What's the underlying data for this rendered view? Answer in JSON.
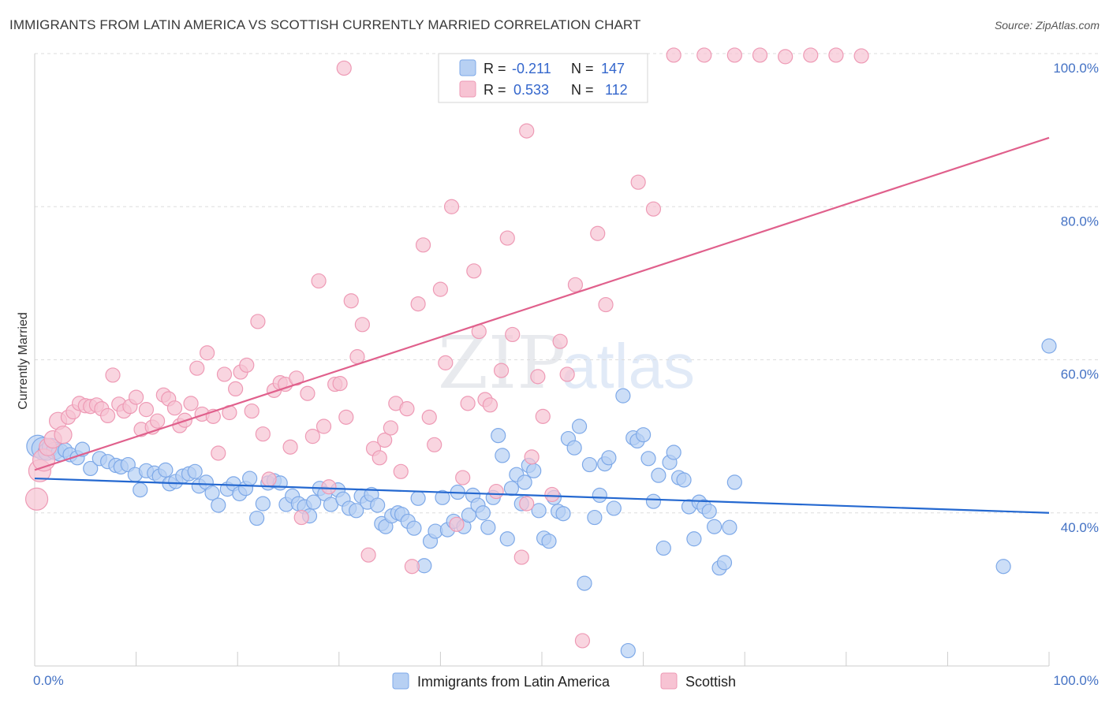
{
  "header": {
    "title": "IMMIGRANTS FROM LATIN AMERICA VS SCOTTISH CURRENTLY MARRIED CORRELATION CHART",
    "source": "Source: ZipAtlas.com"
  },
  "watermark": {
    "zip": "ZIP",
    "atlas": "atlas"
  },
  "legend": {
    "r_label": "R =",
    "n_label": "N =",
    "series": [
      {
        "r": "-0.211",
        "n": "147"
      },
      {
        "r": "0.533",
        "n": "112"
      }
    ]
  },
  "bottom_legend": [
    "Immigrants from Latin America",
    "Scottish"
  ],
  "colors": {
    "blue_fill": "#b7d0f3",
    "blue_stroke": "#7ea9e8",
    "blue_line": "#2468d0",
    "pink_fill": "#f7c3d3",
    "pink_stroke": "#ee9ab5",
    "pink_line": "#e0608c",
    "tick": "#4472c4"
  },
  "chart_data": {
    "type": "scatter",
    "xlabel": "",
    "ylabel": "Currently Married",
    "xlim": [
      0,
      100
    ],
    "ylim": [
      20,
      100
    ],
    "x_tick_labels": [
      "0.0%",
      "100.0%"
    ],
    "y_ticks": [
      40,
      60,
      80,
      100
    ],
    "y_tick_labels": [
      "40.0%",
      "60.0%",
      "80.0%",
      "100.0%"
    ],
    "grid": true,
    "legend_position": "top-center",
    "series": [
      {
        "r": -0.211,
        "n": 147,
        "trend": {
          "x": [
            0,
            100
          ],
          "y": [
            44.5,
            40.0
          ]
        },
        "points": [
          [
            0.3,
            48.7
          ],
          [
            0.8,
            48.4
          ],
          [
            1.2,
            48.0
          ],
          [
            1.6,
            48.6
          ],
          [
            2.0,
            48.1
          ],
          [
            2.5,
            47.9
          ],
          [
            3.0,
            48.2
          ],
          [
            3.5,
            47.6
          ],
          [
            4.2,
            47.2
          ],
          [
            4.7,
            48.3
          ],
          [
            5.5,
            45.8
          ],
          [
            6.4,
            47.1
          ],
          [
            7.2,
            46.7
          ],
          [
            8.0,
            46.2
          ],
          [
            8.5,
            46.0
          ],
          [
            9.2,
            46.3
          ],
          [
            9.9,
            45.0
          ],
          [
            10.4,
            43.0
          ],
          [
            11.0,
            45.5
          ],
          [
            11.8,
            45.2
          ],
          [
            12.3,
            44.8
          ],
          [
            12.9,
            45.6
          ],
          [
            13.3,
            43.8
          ],
          [
            13.9,
            44.1
          ],
          [
            14.6,
            44.8
          ],
          [
            15.2,
            45.1
          ],
          [
            15.8,
            45.4
          ],
          [
            16.2,
            43.5
          ],
          [
            16.9,
            44.0
          ],
          [
            17.5,
            42.6
          ],
          [
            18.1,
            41.0
          ],
          [
            19.0,
            43.1
          ],
          [
            19.6,
            43.8
          ],
          [
            20.2,
            42.5
          ],
          [
            20.8,
            43.2
          ],
          [
            21.2,
            44.5
          ],
          [
            21.9,
            39.3
          ],
          [
            22.5,
            41.2
          ],
          [
            23.0,
            43.9
          ],
          [
            23.6,
            44.2
          ],
          [
            24.2,
            43.9
          ],
          [
            24.8,
            41.1
          ],
          [
            25.4,
            42.2
          ],
          [
            26.0,
            41.2
          ],
          [
            26.6,
            40.8
          ],
          [
            27.1,
            39.6
          ],
          [
            27.5,
            41.4
          ],
          [
            28.1,
            43.2
          ],
          [
            28.6,
            42.5
          ],
          [
            29.2,
            41.1
          ],
          [
            29.9,
            43.0
          ],
          [
            30.4,
            41.8
          ],
          [
            31.0,
            40.6
          ],
          [
            31.7,
            40.3
          ],
          [
            32.2,
            42.2
          ],
          [
            32.8,
            41.4
          ],
          [
            33.2,
            42.4
          ],
          [
            33.8,
            41.0
          ],
          [
            34.2,
            38.6
          ],
          [
            34.6,
            38.2
          ],
          [
            35.2,
            39.6
          ],
          [
            35.8,
            40.0
          ],
          [
            36.2,
            39.8
          ],
          [
            36.8,
            38.9
          ],
          [
            37.4,
            38.0
          ],
          [
            37.8,
            41.9
          ],
          [
            38.4,
            33.1
          ],
          [
            39.0,
            36.3
          ],
          [
            39.5,
            37.6
          ],
          [
            40.2,
            42.0
          ],
          [
            40.7,
            37.8
          ],
          [
            41.3,
            38.9
          ],
          [
            41.7,
            42.7
          ],
          [
            42.3,
            38.2
          ],
          [
            42.8,
            39.7
          ],
          [
            43.2,
            42.3
          ],
          [
            43.7,
            41.0
          ],
          [
            44.2,
            40.0
          ],
          [
            44.7,
            38.1
          ],
          [
            45.2,
            42.0
          ],
          [
            45.7,
            50.1
          ],
          [
            46.1,
            47.5
          ],
          [
            46.6,
            36.6
          ],
          [
            47.0,
            43.2
          ],
          [
            47.5,
            45.0
          ],
          [
            48.0,
            41.2
          ],
          [
            48.3,
            44.0
          ],
          [
            48.7,
            46.2
          ],
          [
            49.2,
            45.5
          ],
          [
            49.7,
            40.3
          ],
          [
            50.2,
            36.7
          ],
          [
            50.7,
            36.3
          ],
          [
            51.2,
            42.0
          ],
          [
            51.6,
            40.2
          ],
          [
            52.1,
            39.9
          ],
          [
            52.6,
            49.7
          ],
          [
            53.2,
            48.5
          ],
          [
            53.7,
            51.3
          ],
          [
            54.2,
            30.8
          ],
          [
            54.7,
            46.3
          ],
          [
            55.2,
            39.4
          ],
          [
            55.7,
            42.3
          ],
          [
            56.2,
            46.4
          ],
          [
            56.6,
            47.2
          ],
          [
            57.1,
            40.6
          ],
          [
            58.0,
            55.3
          ],
          [
            58.5,
            22.0
          ],
          [
            59.0,
            49.8
          ],
          [
            59.4,
            49.4
          ],
          [
            60.0,
            50.2
          ],
          [
            60.5,
            47.1
          ],
          [
            61.0,
            41.5
          ],
          [
            61.5,
            44.9
          ],
          [
            62.0,
            35.4
          ],
          [
            62.6,
            46.6
          ],
          [
            63.0,
            47.9
          ],
          [
            63.5,
            44.6
          ],
          [
            64.0,
            44.3
          ],
          [
            64.5,
            40.8
          ],
          [
            65.0,
            36.6
          ],
          [
            65.5,
            41.4
          ],
          [
            66.0,
            40.8
          ],
          [
            66.5,
            40.2
          ],
          [
            67.0,
            38.2
          ],
          [
            67.5,
            32.8
          ],
          [
            68.0,
            33.5
          ],
          [
            68.5,
            38.1
          ],
          [
            69.0,
            44.0
          ],
          [
            95.5,
            33.0
          ],
          [
            100.0,
            61.8
          ]
        ]
      },
      {
        "r": 0.533,
        "n": 112,
        "trend": {
          "x": [
            0,
            100
          ],
          "y": [
            45.6,
            89.0
          ]
        },
        "points": [
          [
            0.2,
            41.8
          ],
          [
            0.5,
            45.5
          ],
          [
            0.9,
            46.9
          ],
          [
            1.3,
            48.6
          ],
          [
            1.8,
            49.6
          ],
          [
            2.3,
            52.0
          ],
          [
            2.8,
            50.2
          ],
          [
            3.3,
            52.5
          ],
          [
            3.8,
            53.2
          ],
          [
            4.4,
            54.3
          ],
          [
            5.0,
            54.0
          ],
          [
            5.5,
            53.9
          ],
          [
            6.1,
            54.1
          ],
          [
            6.6,
            53.6
          ],
          [
            7.2,
            52.7
          ],
          [
            7.7,
            58.0
          ],
          [
            8.3,
            54.2
          ],
          [
            8.8,
            53.3
          ],
          [
            9.4,
            53.9
          ],
          [
            10.0,
            55.1
          ],
          [
            10.5,
            50.9
          ],
          [
            11.0,
            53.5
          ],
          [
            11.6,
            51.2
          ],
          [
            12.1,
            52.0
          ],
          [
            12.7,
            55.4
          ],
          [
            13.2,
            54.9
          ],
          [
            13.8,
            53.7
          ],
          [
            14.3,
            51.4
          ],
          [
            14.8,
            52.1
          ],
          [
            15.4,
            54.3
          ],
          [
            16.0,
            58.9
          ],
          [
            16.5,
            52.9
          ],
          [
            17.0,
            60.9
          ],
          [
            17.6,
            52.6
          ],
          [
            18.1,
            47.8
          ],
          [
            18.7,
            58.1
          ],
          [
            19.2,
            53.1
          ],
          [
            19.8,
            56.2
          ],
          [
            20.3,
            58.4
          ],
          [
            20.9,
            59.3
          ],
          [
            21.4,
            53.3
          ],
          [
            22.0,
            65.0
          ],
          [
            22.5,
            50.3
          ],
          [
            23.1,
            44.4
          ],
          [
            23.6,
            56.0
          ],
          [
            24.2,
            57.0
          ],
          [
            24.7,
            56.8
          ],
          [
            25.2,
            48.6
          ],
          [
            25.8,
            57.6
          ],
          [
            26.3,
            39.4
          ],
          [
            26.9,
            55.6
          ],
          [
            27.4,
            50.0
          ],
          [
            28.0,
            70.3
          ],
          [
            28.5,
            51.3
          ],
          [
            29.0,
            43.4
          ],
          [
            29.6,
            56.8
          ],
          [
            30.1,
            56.9
          ],
          [
            30.7,
            52.5
          ],
          [
            31.2,
            67.7
          ],
          [
            31.8,
            60.4
          ],
          [
            32.3,
            64.6
          ],
          [
            32.9,
            34.5
          ],
          [
            33.4,
            48.4
          ],
          [
            34.0,
            47.2
          ],
          [
            34.5,
            49.5
          ],
          [
            35.1,
            51.1
          ],
          [
            35.6,
            54.3
          ],
          [
            36.1,
            45.4
          ],
          [
            36.7,
            53.6
          ],
          [
            37.2,
            33.0
          ],
          [
            37.8,
            67.3
          ],
          [
            38.3,
            75.0
          ],
          [
            38.9,
            52.5
          ],
          [
            39.4,
            48.9
          ],
          [
            40.0,
            69.2
          ],
          [
            40.5,
            59.6
          ],
          [
            41.1,
            80.0
          ],
          [
            41.6,
            38.5
          ],
          [
            42.2,
            44.6
          ],
          [
            42.7,
            54.3
          ],
          [
            43.3,
            71.6
          ],
          [
            43.8,
            63.7
          ],
          [
            44.4,
            54.8
          ],
          [
            44.9,
            54.1
          ],
          [
            45.5,
            42.8
          ],
          [
            46.0,
            58.6
          ],
          [
            46.6,
            75.9
          ],
          [
            47.1,
            63.3
          ],
          [
            48.0,
            34.2
          ],
          [
            48.5,
            41.2
          ],
          [
            49.0,
            47.3
          ],
          [
            49.6,
            57.8
          ],
          [
            50.1,
            52.6
          ],
          [
            51.0,
            42.4
          ],
          [
            51.8,
            62.4
          ],
          [
            52.5,
            58.1
          ],
          [
            53.3,
            69.8
          ],
          [
            54.0,
            23.3
          ],
          [
            55.5,
            76.5
          ],
          [
            56.3,
            67.2
          ],
          [
            30.5,
            98.1
          ],
          [
            48.5,
            89.9
          ],
          [
            59.5,
            83.2
          ],
          [
            61.0,
            79.7
          ],
          [
            63.0,
            99.8
          ],
          [
            66.0,
            99.8
          ],
          [
            69.0,
            99.8
          ],
          [
            71.5,
            99.8
          ],
          [
            74.0,
            99.6
          ],
          [
            76.5,
            99.8
          ],
          [
            79.0,
            99.8
          ],
          [
            81.5,
            99.7
          ]
        ]
      }
    ]
  }
}
